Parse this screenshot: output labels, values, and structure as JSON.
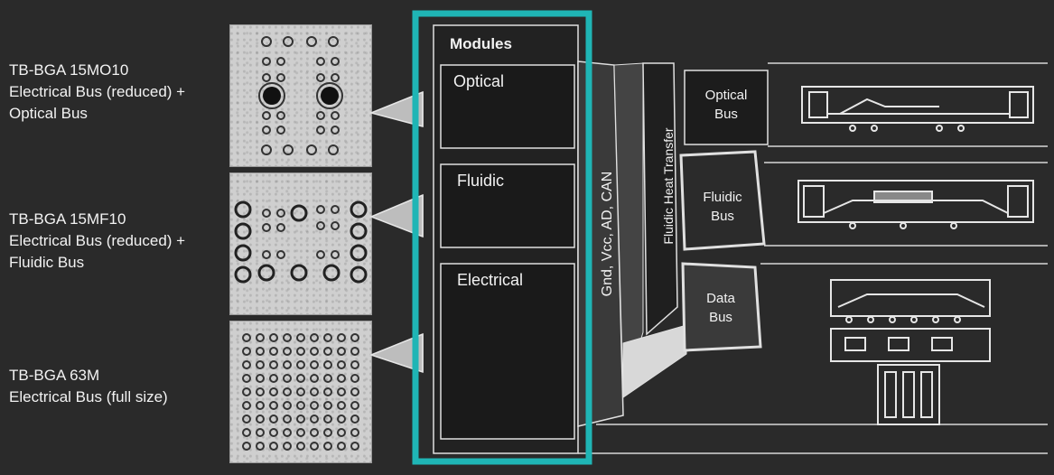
{
  "packages": [
    {
      "lines": [
        "TB-BGA 15MO10",
        "Electrical Bus (reduced) +",
        "Optical Bus"
      ]
    },
    {
      "lines": [
        "TB-BGA 15MF10",
        "Electrical Bus (reduced) +",
        "Fluidic Bus"
      ]
    },
    {
      "lines": [
        "TB-BGA 63M",
        "Electrical Bus (full size)"
      ]
    }
  ],
  "modules": {
    "title": "Modules",
    "slots": [
      "Optical",
      "Fluidic",
      "Electrical"
    ]
  },
  "electrical_rail": "Gnd, Vcc, AD, CAN",
  "fluidic_rail": "Fluidic Heat Transfer",
  "buses": [
    {
      "lines": [
        "Optical",
        "Bus"
      ]
    },
    {
      "lines": [
        "Fluidic",
        "Bus"
      ]
    },
    {
      "lines": [
        "Data",
        "Bus"
      ]
    }
  ],
  "colors": {
    "background": "#2a2a2a",
    "highlight": "#1fb5b5",
    "line": "#e6e6e6"
  }
}
